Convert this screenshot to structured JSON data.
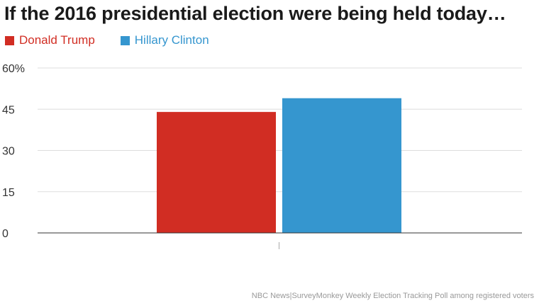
{
  "chart_data": {
    "type": "bar",
    "title": "If the 2016 presidential election were being held today…",
    "categories": [
      ""
    ],
    "series": [
      {
        "name": "Donald Trump",
        "color": "#d12d23",
        "values": [
          44
        ]
      },
      {
        "name": "Hillary Clinton",
        "color": "#3596cf",
        "values": [
          49
        ]
      }
    ],
    "ylim": [
      0,
      60
    ],
    "yticks": [
      {
        "value": 0,
        "label": "0"
      },
      {
        "value": 15,
        "label": "15"
      },
      {
        "value": 30,
        "label": "30"
      },
      {
        "value": 45,
        "label": "45"
      },
      {
        "value": 60,
        "label": "60%"
      }
    ],
    "xlabel": "",
    "ylabel": "",
    "grid": true,
    "legend": "top-left",
    "source": "NBC News|SurveyMonkey Weekly Election Tracking Poll among registered voters"
  }
}
